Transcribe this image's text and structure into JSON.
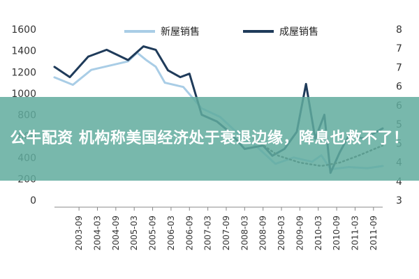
{
  "headline": "公牛配资 机构称美国经济处于衰退边缘，降息也救不了！",
  "chart_data": {
    "type": "line",
    "legend": [
      "新屋销售",
      "成屋销售"
    ],
    "x_ticks": [
      "2003-09",
      "2004-03",
      "2004-09",
      "2005-03",
      "2005-09",
      "2006-03",
      "2006-09",
      "2007-03",
      "2007-09",
      "2008-03",
      "2008-09",
      "2009-03",
      "2009-09",
      "2010-03",
      "2010-09",
      "2011-03",
      "2011-09"
    ],
    "y_left_ticks": [
      "1600",
      "1400",
      "1200",
      "1000",
      "800",
      "600",
      "400",
      "200",
      "0"
    ],
    "y_right_ticks": [
      "8",
      "7",
      "7",
      "6",
      "6",
      "5",
      "5",
      "4",
      "4",
      "3"
    ],
    "y_left_range": [
      0,
      1600
    ],
    "y_right_range": [
      3,
      8
    ],
    "colors": {
      "new_home": "#a9cde6",
      "existing_home": "#1f3b5a",
      "trend": "#444444"
    },
    "series": [
      {
        "name": "新屋销售",
        "axis": "left",
        "x": [
          "2003-01",
          "2003-07",
          "2004-01",
          "2004-07",
          "2005-01",
          "2005-04",
          "2005-07",
          "2005-10",
          "2006-01",
          "2006-07",
          "2007-01",
          "2007-07",
          "2008-01",
          "2008-07",
          "2009-01",
          "2009-07",
          "2010-01",
          "2010-04",
          "2010-07",
          "2011-01",
          "2011-07",
          "2011-12"
        ],
        "values": [
          1150,
          1080,
          1220,
          1260,
          1300,
          1380,
          1310,
          1250,
          1100,
          1060,
          860,
          780,
          620,
          500,
          340,
          400,
          360,
          420,
          290,
          310,
          300,
          320
        ]
      },
      {
        "name": "成屋销售",
        "axis": "right",
        "x": [
          "2003-01",
          "2003-06",
          "2003-12",
          "2004-06",
          "2005-01",
          "2005-06",
          "2005-10",
          "2006-02",
          "2006-06",
          "2006-09",
          "2007-01",
          "2007-06",
          "2007-10",
          "2008-03",
          "2008-09",
          "2008-12",
          "2009-04",
          "2009-08",
          "2009-11",
          "2010-02",
          "2010-05",
          "2010-07",
          "2010-10",
          "2011-01",
          "2011-06",
          "2011-12"
        ],
        "values": [
          6.9,
          6.6,
          7.2,
          7.4,
          7.1,
          7.5,
          7.4,
          6.8,
          6.6,
          6.7,
          5.5,
          5.3,
          5.0,
          4.5,
          4.6,
          4.3,
          4.5,
          5.0,
          6.4,
          4.8,
          5.5,
          3.8,
          4.4,
          4.9,
          4.8,
          5.1
        ]
      },
      {
        "name": "",
        "style": "dotted-trend",
        "axis": "right",
        "x": [
          "2008-06",
          "2009-02",
          "2009-09",
          "2010-04",
          "2010-10",
          "2011-04",
          "2011-12"
        ],
        "values": [
          4.8,
          4.3,
          4.1,
          4.0,
          4.1,
          4.3,
          4.6
        ]
      }
    ]
  }
}
